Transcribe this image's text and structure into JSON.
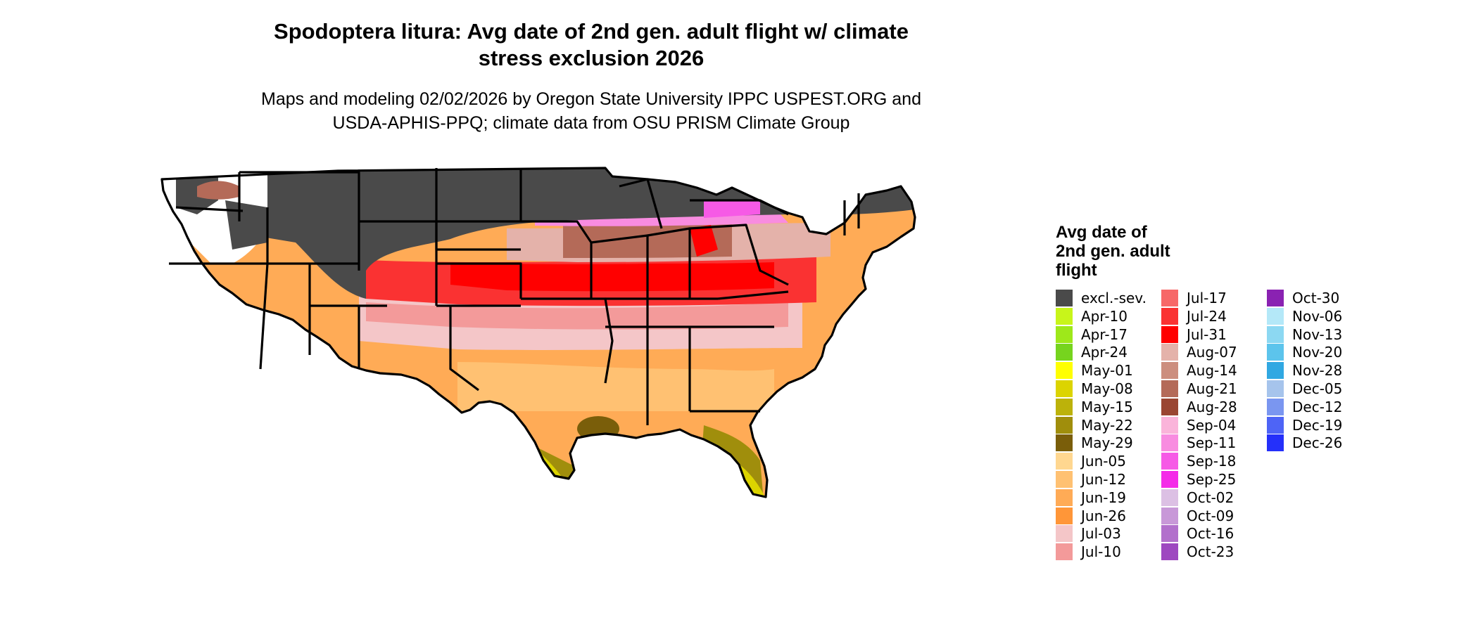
{
  "title": {
    "line1": "Spodoptera litura: Avg date of 2nd gen. adult flight w/ climate",
    "line2": "stress exclusion 2026"
  },
  "subtitle": {
    "line1": "Maps and modeling 02/02/2026 by Oregon State University IPPC USPEST.ORG and",
    "line2": "USDA-APHIS-PPQ; climate data from OSU PRISM Climate Group"
  },
  "legend": {
    "title_lines": [
      "Avg date of",
      "2nd gen. adult",
      "flight"
    ],
    "items": [
      {
        "label": "excl.-sev.",
        "color": "#4a4a4a"
      },
      {
        "label": "Apr-10",
        "color": "#c8f51a"
      },
      {
        "label": "Apr-17",
        "color": "#9ee81a"
      },
      {
        "label": "Apr-24",
        "color": "#76d41e"
      },
      {
        "label": "May-01",
        "color": "#ffff00"
      },
      {
        "label": "May-08",
        "color": "#dcd400"
      },
      {
        "label": "May-15",
        "color": "#bcb20a"
      },
      {
        "label": "May-22",
        "color": "#a08e0c"
      },
      {
        "label": "May-29",
        "color": "#7a5e0a"
      },
      {
        "label": "Jun-05",
        "color": "#ffd790"
      },
      {
        "label": "Jun-12",
        "color": "#ffc172"
      },
      {
        "label": "Jun-19",
        "color": "#ffab56"
      },
      {
        "label": "Jun-26",
        "color": "#ff9638"
      },
      {
        "label": "Jul-03",
        "color": "#f4c6c8"
      },
      {
        "label": "Jul-10",
        "color": "#f39a9a"
      },
      {
        "label": "Jul-17",
        "color": "#f76868"
      },
      {
        "label": "Jul-24",
        "color": "#fa3232"
      },
      {
        "label": "Jul-31",
        "color": "#ff0000"
      },
      {
        "label": "Aug-07",
        "color": "#e4b2aa"
      },
      {
        "label": "Aug-14",
        "color": "#cc8e7e"
      },
      {
        "label": "Aug-21",
        "color": "#b46a58"
      },
      {
        "label": "Aug-28",
        "color": "#9a4632"
      },
      {
        "label": "Sep-04",
        "color": "#fab4da"
      },
      {
        "label": "Sep-11",
        "color": "#f88ce0"
      },
      {
        "label": "Sep-18",
        "color": "#f65ae6"
      },
      {
        "label": "Sep-25",
        "color": "#f42ae8"
      },
      {
        "label": "Oct-02",
        "color": "#dcc0e4"
      },
      {
        "label": "Oct-09",
        "color": "#c898d8"
      },
      {
        "label": "Oct-16",
        "color": "#b270cc"
      },
      {
        "label": "Oct-23",
        "color": "#9e48c0"
      },
      {
        "label": "Oct-30",
        "color": "#8a22b2"
      },
      {
        "label": "Nov-06",
        "color": "#b4e8f8"
      },
      {
        "label": "Nov-13",
        "color": "#8cd8f2"
      },
      {
        "label": "Nov-20",
        "color": "#5cc4ec"
      },
      {
        "label": "Nov-28",
        "color": "#30a8e2"
      },
      {
        "label": "Dec-05",
        "color": "#a6c4ec"
      },
      {
        "label": "Dec-12",
        "color": "#7a96f0"
      },
      {
        "label": "Dec-19",
        "color": "#4e64f6"
      },
      {
        "label": "Dec-26",
        "color": "#2430fa"
      }
    ]
  }
}
